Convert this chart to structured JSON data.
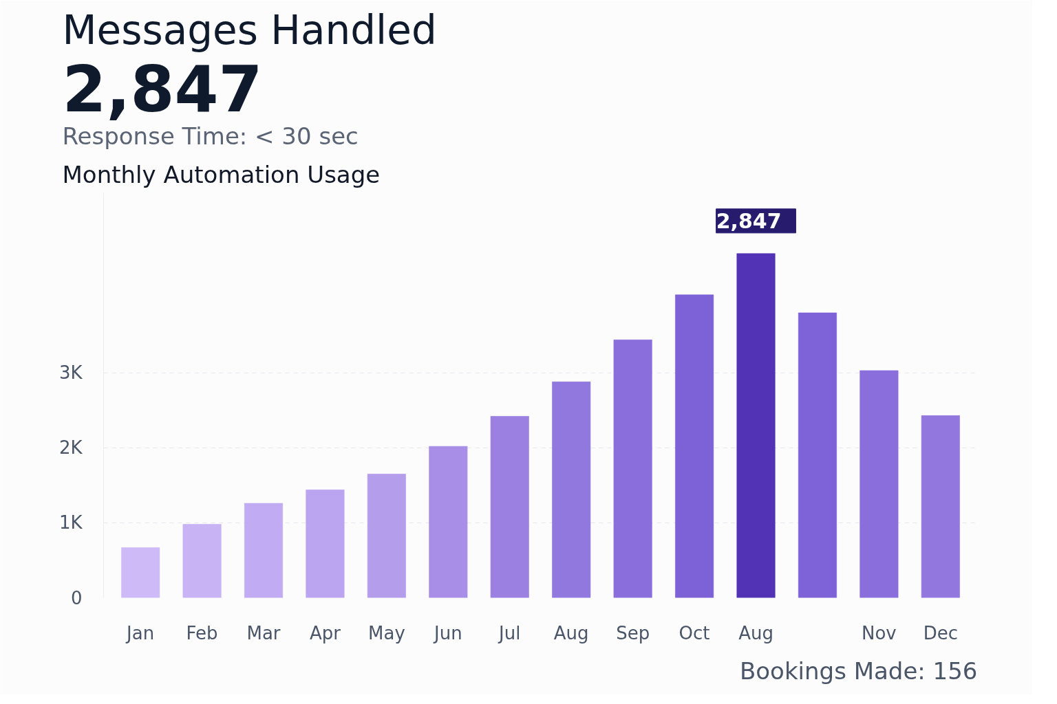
{
  "chart_data": {
    "type": "bar",
    "title": "Messages Handled",
    "subtitle": "Monthly Automation Usage",
    "annotations": [
      "2,847",
      "Response Time: < 30 sec",
      "2,847",
      "Bookings Made: 156"
    ],
    "categories": [
      "Jan",
      "Feb",
      "Mar",
      "Apr",
      "May",
      "Jun",
      "Jul",
      "Aug",
      "Sep",
      "Oct",
      "Aug",
      null,
      "Nov",
      "Dec"
    ],
    "values": [
      670,
      980,
      1260,
      1440,
      1650,
      2020,
      2420,
      2880,
      3440,
      4040,
      4590,
      3800,
      3030,
      2430
    ],
    "colors": [
      "#cdbaf6",
      "#c8b3f4",
      "#c1abf2",
      "#bba5f0",
      "#b49deb",
      "#a88ee6",
      "#9b80e2",
      "#9178df",
      "#8a6fdc",
      "#7d61d7",
      "#5233b5",
      "#7e62d8",
      "#8a6fdc",
      "#9277df"
    ],
    "ylim": [
      0,
      5400
    ],
    "yticks": [
      0,
      {
        "value": 1000,
        "label": "1K"
      },
      {
        "value": 2000,
        "label": "2K"
      },
      {
        "value": 3000,
        "label": "3K"
      }
    ],
    "grid": "y"
  }
}
